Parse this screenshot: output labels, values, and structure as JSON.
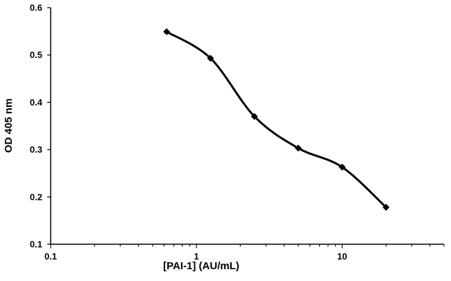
{
  "chart_data": {
    "type": "line",
    "title": "",
    "xlabel": "[PAI-1] (AU/mL)",
    "ylabel": "OD 405 nm",
    "x_scale": "log",
    "xlim": [
      0.1,
      50
    ],
    "ylim": [
      0.1,
      0.6
    ],
    "x_ticks": [
      0.1,
      1,
      10
    ],
    "x_tick_labels": [
      "0.1",
      "1",
      "10"
    ],
    "y_ticks": [
      0.1,
      0.2,
      0.3,
      0.4,
      0.5,
      0.6
    ],
    "y_tick_labels": [
      "0.1",
      "0.2",
      "0.3",
      "0.4",
      "0.5",
      "0.6"
    ],
    "grid": false,
    "series": [
      {
        "x": [
          0.625,
          1.25,
          2.5,
          5,
          10,
          20
        ],
        "y": [
          0.549,
          0.493,
          0.37,
          0.303,
          0.263,
          0.178
        ],
        "color": "#000000",
        "marker": "diamond",
        "smooth": true
      }
    ]
  }
}
